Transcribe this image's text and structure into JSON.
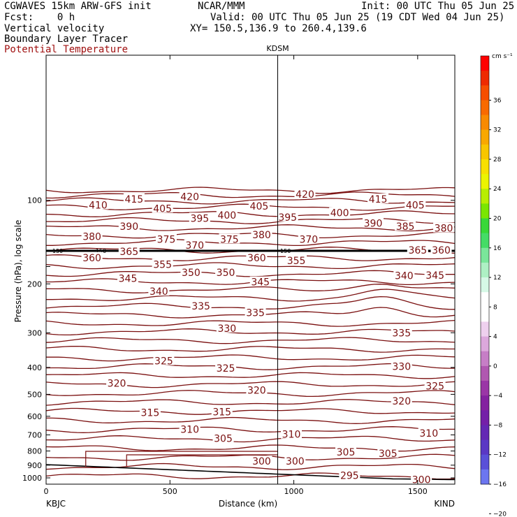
{
  "header": {
    "line1_left": "CGWAVES 15km ARW-GFS init",
    "line1_mid": "NCAR/MMM",
    "line1_right": "Init: 00 UTC Thu 05 Jun 25",
    "line2_left": "Fcst:    0 h",
    "line2_right": "Valid: 00 UTC Thu 05 Jun 25 (19 CDT Wed 04 Jun 25)",
    "line3_left": "Vertical velocity",
    "line3_right": "XY= 150.5,136.9 to 260.4,139.6",
    "line4_left": "Boundary Layer Tracer",
    "line5_left": "Potential Temperature"
  },
  "colors": {
    "contour": "#7a0f0f",
    "frame": "#000000",
    "pbl_line": "#000000"
  },
  "chart_data": {
    "type": "cross-section",
    "station_marker": "KDSM",
    "x_start_label": "KBJC",
    "x_end_label": "KIND",
    "xlabel": "Distance (km)",
    "ylabel": "Pressure (hPa), log scale",
    "x_ticks": [
      0,
      500,
      1000,
      1500
    ],
    "y_ticks": [
      100,
      200,
      300,
      400,
      500,
      600,
      700,
      800,
      900,
      1000
    ],
    "xlim": [
      0,
      1650
    ],
    "ylim": [
      1000,
      30
    ],
    "station_x": 935,
    "tropopause_label": "150",
    "contour_labels": [
      {
        "v": "420",
        "x": 580,
        "p": 97
      },
      {
        "v": "420",
        "x": 1045,
        "p": 95
      },
      {
        "v": "415",
        "x": 355,
        "p": 99
      },
      {
        "v": "415",
        "x": 1340,
        "p": 99
      },
      {
        "v": "410",
        "x": 210,
        "p": 104
      },
      {
        "v": "405",
        "x": 470,
        "p": 107
      },
      {
        "v": "405",
        "x": 860,
        "p": 105
      },
      {
        "v": "405",
        "x": 1490,
        "p": 104
      },
      {
        "v": "400",
        "x": 730,
        "p": 113
      },
      {
        "v": "400",
        "x": 1185,
        "p": 111
      },
      {
        "v": "395",
        "x": 620,
        "p": 116
      },
      {
        "v": "395",
        "x": 975,
        "p": 115
      },
      {
        "v": "390",
        "x": 335,
        "p": 124
      },
      {
        "v": "390",
        "x": 1320,
        "p": 121
      },
      {
        "v": "385",
        "x": 1450,
        "p": 124
      },
      {
        "v": "380",
        "x": 185,
        "p": 135
      },
      {
        "v": "380",
        "x": 870,
        "p": 133
      },
      {
        "v": "380",
        "x": 1605,
        "p": 126
      },
      {
        "v": "375",
        "x": 485,
        "p": 138
      },
      {
        "v": "375",
        "x": 740,
        "p": 138
      },
      {
        "v": "370",
        "x": 1060,
        "p": 138
      },
      {
        "v": "370",
        "x": 600,
        "p": 145
      },
      {
        "v": "365",
        "x": 335,
        "p": 153
      },
      {
        "v": "365",
        "x": 1500,
        "p": 151
      },
      {
        "v": "360",
        "x": 185,
        "p": 161
      },
      {
        "v": "360",
        "x": 850,
        "p": 161
      },
      {
        "v": "360",
        "x": 1595,
        "p": 151
      },
      {
        "v": "355",
        "x": 1010,
        "p": 165
      },
      {
        "v": "355",
        "x": 470,
        "p": 170
      },
      {
        "v": "350",
        "x": 585,
        "p": 182
      },
      {
        "v": "350",
        "x": 725,
        "p": 182
      },
      {
        "v": "345",
        "x": 330,
        "p": 191
      },
      {
        "v": "345",
        "x": 865,
        "p": 197
      },
      {
        "v": "345",
        "x": 1570,
        "p": 186
      },
      {
        "v": "340",
        "x": 455,
        "p": 213
      },
      {
        "v": "340",
        "x": 1445,
        "p": 187
      },
      {
        "v": "335",
        "x": 625,
        "p": 240
      },
      {
        "v": "335",
        "x": 845,
        "p": 254
      },
      {
        "v": "335",
        "x": 1435,
        "p": 300
      },
      {
        "v": "330",
        "x": 730,
        "p": 289
      },
      {
        "v": "330",
        "x": 1435,
        "p": 397
      },
      {
        "v": "325",
        "x": 475,
        "p": 379
      },
      {
        "v": "325",
        "x": 725,
        "p": 402
      },
      {
        "v": "325",
        "x": 1570,
        "p": 466
      },
      {
        "v": "320",
        "x": 285,
        "p": 456
      },
      {
        "v": "320",
        "x": 850,
        "p": 483
      },
      {
        "v": "320",
        "x": 1435,
        "p": 529
      },
      {
        "v": "315",
        "x": 420,
        "p": 582
      },
      {
        "v": "315",
        "x": 710,
        "p": 579
      },
      {
        "v": "310",
        "x": 580,
        "p": 668
      },
      {
        "v": "310",
        "x": 990,
        "p": 697
      },
      {
        "v": "310",
        "x": 1545,
        "p": 690
      },
      {
        "v": "305",
        "x": 715,
        "p": 720
      },
      {
        "v": "305",
        "x": 1210,
        "p": 806
      },
      {
        "v": "305",
        "x": 1380,
        "p": 816
      },
      {
        "v": "300",
        "x": 870,
        "p": 871
      },
      {
        "v": "300",
        "x": 1005,
        "p": 871
      },
      {
        "v": "300",
        "x": 1515,
        "p": 1016
      },
      {
        "v": "295",
        "x": 1225,
        "p": 980
      }
    ]
  },
  "colorbar": {
    "units": "cm s⁻¹",
    "labels": [
      "36",
      "32",
      "28",
      "24",
      "20",
      "16",
      "12",
      "8",
      "4",
      "0",
      "−4",
      "−8",
      "−12",
      "−16",
      "−20"
    ],
    "colors": [
      "#ff0000",
      "#ee2a00",
      "#f64e00",
      "#f86a00",
      "#f88a00",
      "#f8a800",
      "#f8c600",
      "#f8e000",
      "#ecf400",
      "#b8ee00",
      "#7ae600",
      "#38d838",
      "#44dc66",
      "#7ae69a",
      "#aef0c4",
      "#d6f8e6",
      "#ffffff",
      "#ffffff",
      "#eed0ee",
      "#dca8dc",
      "#c67ec6",
      "#b058b0",
      "#9a36a6",
      "#8422a0",
      "#7420a8",
      "#6428b4",
      "#5a38c4",
      "#5a50d8",
      "#6c76f0"
    ]
  }
}
